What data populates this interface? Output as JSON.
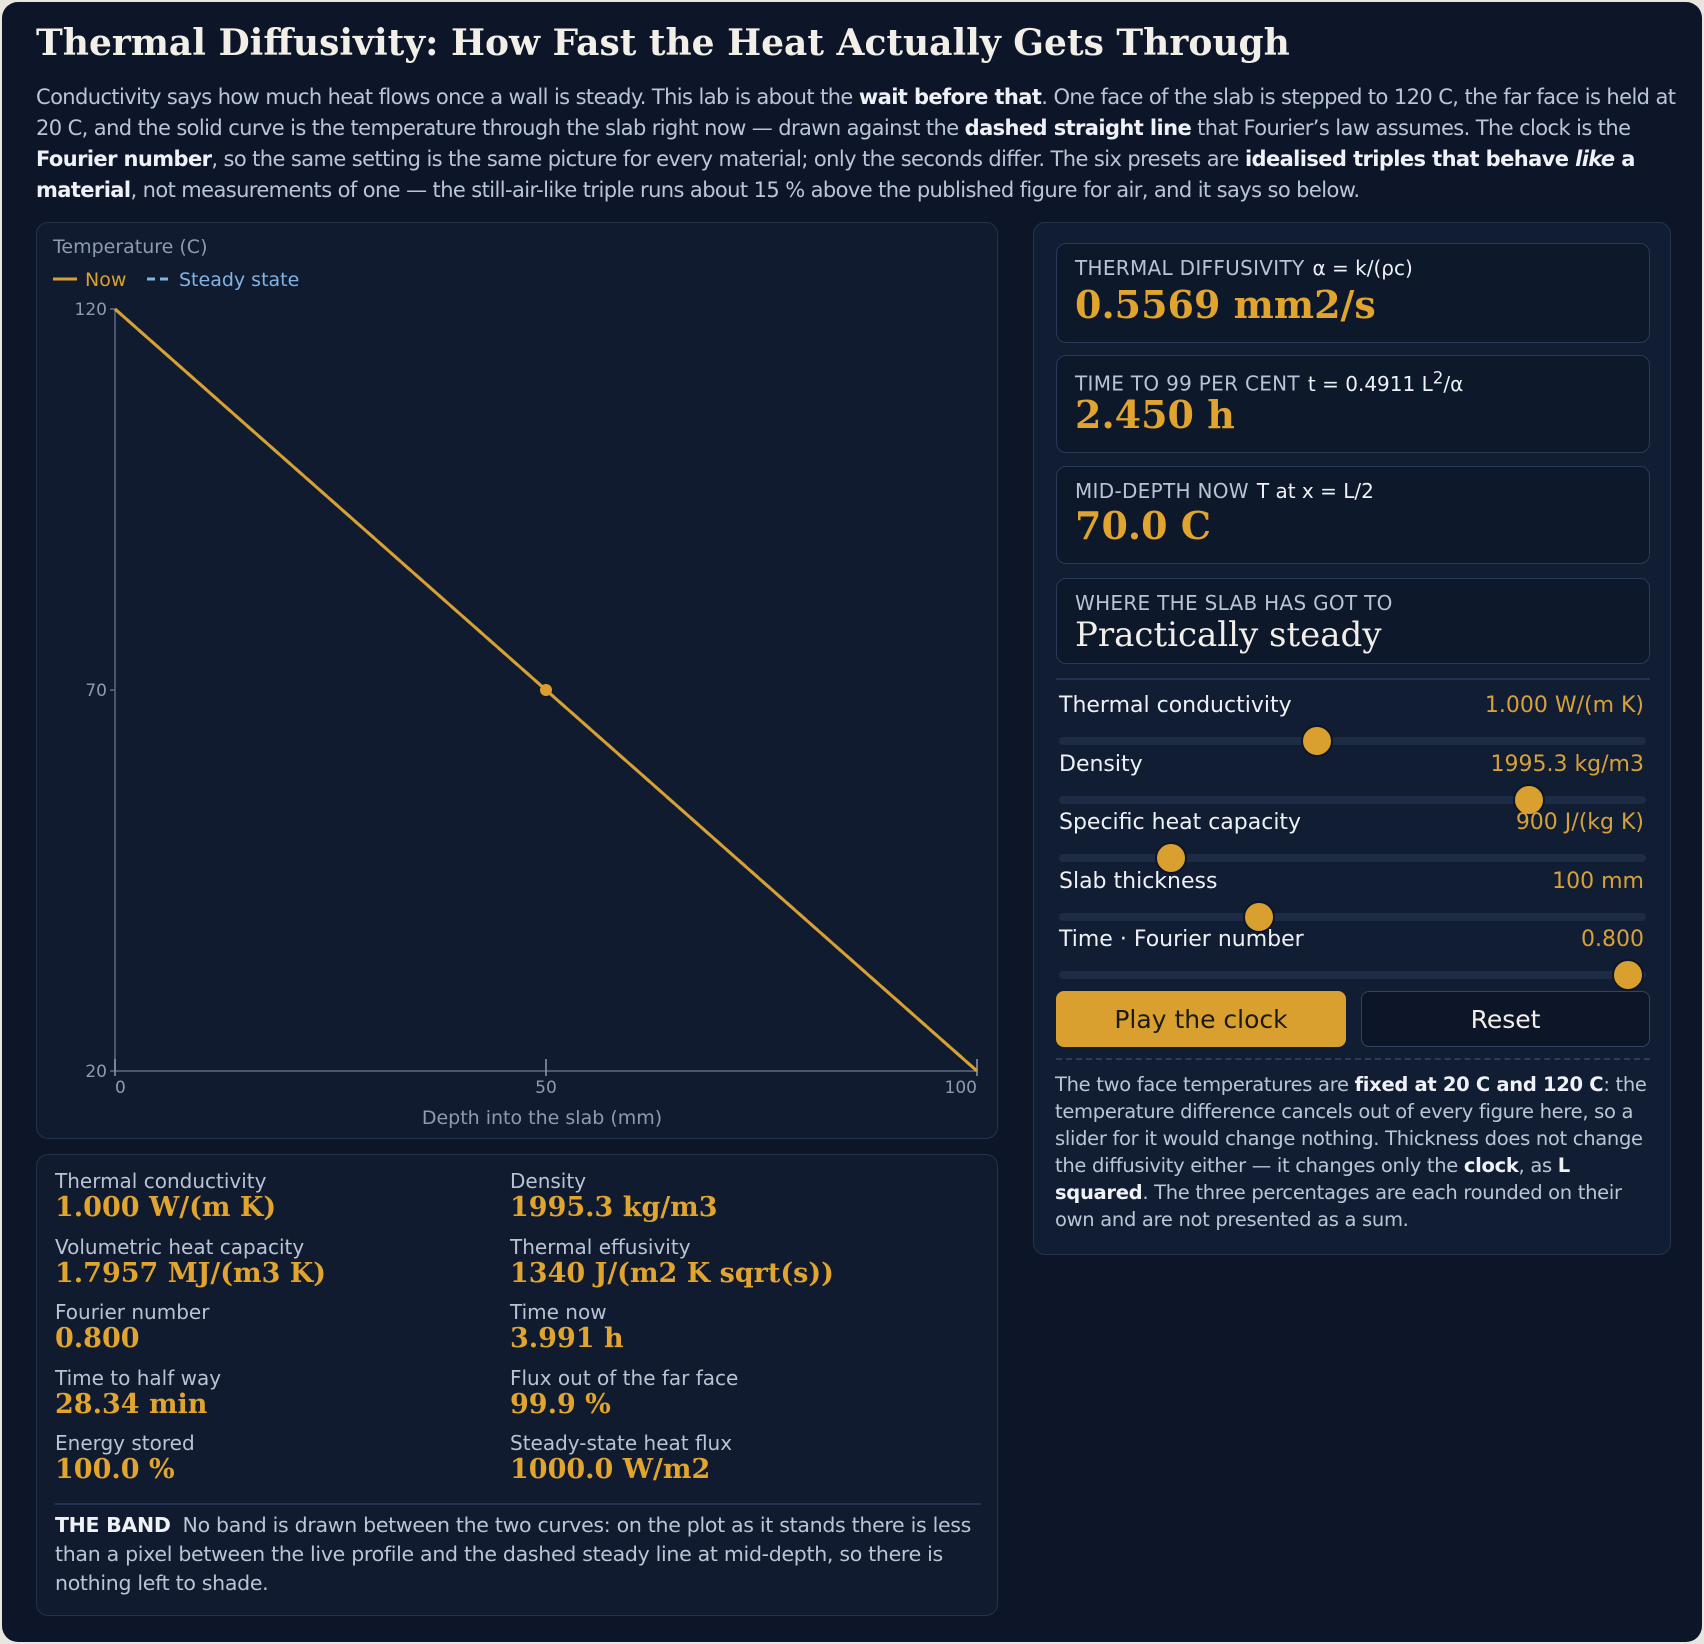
{
  "title": "Thermal Diffusivity: How Fast the Heat Actually Gets Through",
  "intro": {
    "p1": "Conductivity says how much heat flows once a wall is steady. This lab is about the ",
    "b1": "wait before that",
    "p2": ". One face of the slab is stepped to 120 C, the far face is held at 20 C, and the solid curve is the temperature through the slab right now — drawn against the ",
    "b2": "dashed straight line",
    "p3": " that Fourier’s law assumes. The clock is the ",
    "b3": "Fourier number",
    "p4": ", so the same setting is the same picture for every material; only the seconds differ. The six presets are ",
    "b4": "idealised triples that behave ",
    "b4i": "like",
    "b4e": " a material",
    "p5": ", not measurements of one — the still-air-like triple runs about 15 % above the published figure for air, and it says so below."
  },
  "chart_data": {
    "type": "line",
    "ylabel": "Temperature (C)",
    "xlabel": "Depth into the slab (mm)",
    "legend": [
      "Now",
      "Steady state"
    ],
    "legend_position": "top-left",
    "xlim": [
      0,
      100
    ],
    "ylim": [
      20,
      120
    ],
    "x_ticks": [
      0,
      50,
      100
    ],
    "y_ticks": [
      20,
      70,
      120
    ],
    "series": [
      {
        "name": "Now",
        "x": [
          0,
          50,
          100
        ],
        "y": [
          120,
          70,
          20
        ],
        "color": "#d9a02f",
        "marker_at": [
          50,
          70
        ]
      },
      {
        "name": "Steady state",
        "x": [
          0,
          100
        ],
        "y": [
          120,
          20
        ],
        "color": "#7fb4e6",
        "dashed": true
      }
    ]
  },
  "kpis": {
    "diffusivity": {
      "label": "THERMAL DIFFUSIVITY",
      "formula": "α = k/(ρc)",
      "value": "0.5569 mm2/s"
    },
    "time99": {
      "label": "TIME TO 99 PER CENT",
      "formula_pre": "t = 0.4911 L",
      "formula_sup": "2",
      "formula_post": "/α",
      "value": "2.450 h"
    },
    "mid": {
      "label": "MID-DEPTH NOW",
      "formula": "T at x = L/2",
      "value": "70.0 C"
    },
    "where": {
      "label": "WHERE THE SLAB HAS GOT TO",
      "value": "Practically steady"
    }
  },
  "sliders": [
    {
      "label": "Thermal conductivity",
      "value": "1.000 W/(m K)",
      "fraction": 0.44
    },
    {
      "label": "Density",
      "value": "1995.3 kg/m3",
      "fraction": 0.8
    },
    {
      "label": "Specific heat capacity",
      "value": "900 J/(kg K)",
      "fraction": 0.19
    },
    {
      "label": "Slab thickness",
      "value": "100 mm",
      "fraction": 0.34
    },
    {
      "label": "Time · Fourier number",
      "value": "0.800",
      "fraction": 0.97
    }
  ],
  "buttons": {
    "play": "Play the clock",
    "reset": "Reset"
  },
  "note": {
    "p1": "The two face temperatures are ",
    "b1": "fixed at 20 C and 120 C",
    "p2": ": the temperature difference cancels out of every figure here, so a slider for it would change nothing. Thickness does not change the diffusivity either — it changes only the ",
    "b2": "clock",
    "p3": ", as ",
    "b3": "L squared",
    "p4": ". The three percentages are each rounded on their own and are not presented as a sum."
  },
  "stats": [
    {
      "label": "Thermal conductivity",
      "value": "1.000 W/(m K)"
    },
    {
      "label": "Density",
      "value": "1995.3 kg/m3"
    },
    {
      "label": "Volumetric heat capacity",
      "value": "1.7957 MJ/(m3 K)"
    },
    {
      "label": "Thermal effusivity",
      "value": "1340 J/(m2 K sqrt(s))"
    },
    {
      "label": "Fourier number",
      "value": "0.800"
    },
    {
      "label": "Time now",
      "value": "3.991 h"
    },
    {
      "label": "Time to half way",
      "value": "28.34 min"
    },
    {
      "label": "Flux out of the far face",
      "value": "99.9 %"
    },
    {
      "label": "Energy stored",
      "value": "100.0 %"
    },
    {
      "label": "Steady-state heat flux",
      "value": "1000.0 W/m2"
    }
  ],
  "band": {
    "label": "THE BAND",
    "text": "No band is drawn between the two curves: on the plot as it stands there is less than a pixel between the live profile and the dashed steady line at mid-depth, so there is nothing left to shade."
  }
}
